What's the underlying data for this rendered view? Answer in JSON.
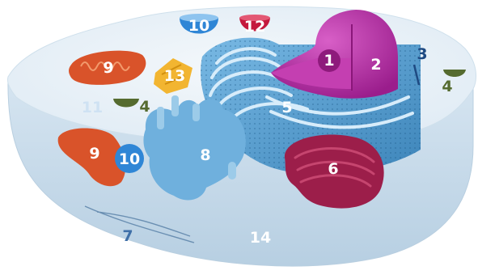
{
  "labels": [
    {
      "id": "nucleolus",
      "text": "1",
      "color": "#ffffff"
    },
    {
      "id": "nucleus",
      "text": "2",
      "color": "#ffffff"
    },
    {
      "id": "ribosome",
      "text": "3",
      "color": "#1e4a82"
    },
    {
      "id": "vesicle_right",
      "text": "4",
      "color": "#556b2f"
    },
    {
      "id": "vesicle_left",
      "text": "4",
      "color": "#556b2f"
    },
    {
      "id": "rough_er",
      "text": "5",
      "color": "#ffffff"
    },
    {
      "id": "golgi",
      "text": "6",
      "color": "#ffffff"
    },
    {
      "id": "cytoskeleton",
      "text": "7",
      "color": "#3f6fa8"
    },
    {
      "id": "smooth_er",
      "text": "8",
      "color": "#ffffff"
    },
    {
      "id": "mitochondrion_top",
      "text": "9",
      "color": "#ffffff"
    },
    {
      "id": "mitochondrion_bottom",
      "text": "9",
      "color": "#ffffff"
    },
    {
      "id": "vacuole_top",
      "text": "10",
      "color": "#ffffff"
    },
    {
      "id": "vacuole_left",
      "text": "10",
      "color": "#ffffff"
    },
    {
      "id": "cytosol",
      "text": "11",
      "color": "#cfe2f3"
    },
    {
      "id": "lysosome",
      "text": "12",
      "color": "#ffffff"
    },
    {
      "id": "centrosome",
      "text": "13",
      "color": "#ffffff"
    },
    {
      "id": "cell_membrane",
      "text": "14",
      "color": "#ffffff"
    }
  ],
  "colors": {
    "cytoplasm": "#e8f1f8",
    "cell_side": "#c9dcea",
    "er": "#4f97c9",
    "smooth_er": "#6fb0dd",
    "nucleus": "#b0279e",
    "golgi": "#9c1e4a",
    "mitochondria": "#d9532a",
    "centrosome": "#f2b531",
    "vacuole": "#2f86d6",
    "lysosome": "#c4183c",
    "vesicle": "#556b2f"
  }
}
